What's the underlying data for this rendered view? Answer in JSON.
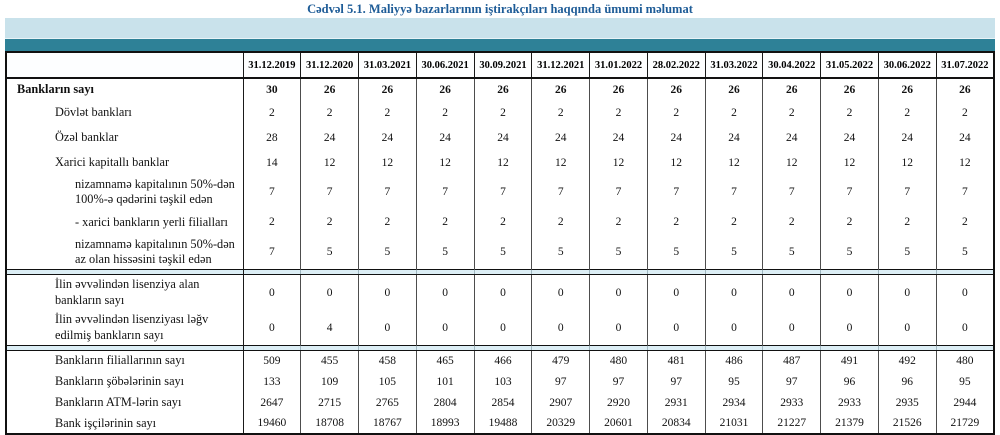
{
  "title": "Cədvəl 5.1. Maliyyə bazarlarının iştirakçıları haqqında ümumi məlumat",
  "colors": {
    "title_text": "#1e5c97",
    "band_light": "#c9e2eb",
    "band_teal": "#2e8197",
    "separator": "#dceef5",
    "border": "#111111"
  },
  "table": {
    "columns": [
      "31.12.2019",
      "31.12.2020",
      "31.03.2021",
      "30.06.2021",
      "30.09.2021",
      "31.12.2021",
      "31.01.2022",
      "28.02.2022",
      "31.03.2022",
      "30.04.2022",
      "31.05.2022",
      "30.06.2022",
      "31.07.2022"
    ],
    "sections": [
      {
        "rows": [
          {
            "label": "Bankların sayı",
            "indent": 0,
            "bold": true,
            "values": [
              "30",
              "26",
              "26",
              "26",
              "26",
              "26",
              "26",
              "26",
              "26",
              "26",
              "26",
              "26",
              "26"
            ]
          },
          {
            "label": "Dövlət bankları",
            "indent": 1,
            "bold": false,
            "values": [
              "2",
              "2",
              "2",
              "2",
              "2",
              "2",
              "2",
              "2",
              "2",
              "2",
              "2",
              "2",
              "2"
            ]
          },
          {
            "label": "Özəl banklar",
            "indent": 1,
            "bold": false,
            "values": [
              "28",
              "24",
              "24",
              "24",
              "24",
              "24",
              "24",
              "24",
              "24",
              "24",
              "24",
              "24",
              "24"
            ]
          },
          {
            "label": "Xarici kapitallı banklar",
            "indent": 1,
            "bold": false,
            "values": [
              "14",
              "12",
              "12",
              "12",
              "12",
              "12",
              "12",
              "12",
              "12",
              "12",
              "12",
              "12",
              "12"
            ]
          },
          {
            "label": "nizamnamə kapitalının 50%-dən 100%-ə qədərini təşkil edən",
            "indent": 2,
            "bold": false,
            "values": [
              "7",
              "7",
              "7",
              "7",
              "7",
              "7",
              "7",
              "7",
              "7",
              "7",
              "7",
              "7",
              "7"
            ]
          },
          {
            "label": "-  xarici bankların yerli filialları",
            "indent": 2,
            "bold": false,
            "values": [
              "2",
              "2",
              "2",
              "2",
              "2",
              "2",
              "2",
              "2",
              "2",
              "2",
              "2",
              "2",
              "2"
            ]
          },
          {
            "label": "nizamnamə kapitalının 50%-dən az olan hissəsini  təşkil edən",
            "indent": 2,
            "bold": false,
            "values": [
              "7",
              "5",
              "5",
              "5",
              "5",
              "5",
              "5",
              "5",
              "5",
              "5",
              "5",
              "5",
              "5"
            ]
          }
        ]
      },
      {
        "rows": [
          {
            "label": "İlin əvvəlindən lisenziya alan bankların sayı",
            "indent": 1,
            "bold": false,
            "values": [
              "0",
              "0",
              "0",
              "0",
              "0",
              "0",
              "0",
              "0",
              "0",
              "0",
              "0",
              "0",
              "0"
            ]
          },
          {
            "label": "İlin əvvəlindən lisenziyası ləğv edilmiş bankların sayı",
            "indent": 1,
            "bold": false,
            "values": [
              "0",
              "4",
              "0",
              "0",
              "0",
              "0",
              "0",
              "0",
              "0",
              "0",
              "0",
              "0",
              "0"
            ]
          }
        ]
      },
      {
        "rows": [
          {
            "label": "Bankların filiallarının sayı",
            "indent": 1,
            "bold": false,
            "values": [
              "509",
              "455",
              "458",
              "465",
              "466",
              "479",
              "480",
              "481",
              "486",
              "487",
              "491",
              "492",
              "480"
            ]
          },
          {
            "label": "Bankların şöbələrinin sayı",
            "indent": 1,
            "bold": false,
            "values": [
              "133",
              "109",
              "105",
              "101",
              "103",
              "97",
              "97",
              "97",
              "95",
              "97",
              "96",
              "96",
              "95"
            ]
          },
          {
            "label": "Bankların ATM-lərin sayı",
            "indent": 1,
            "bold": false,
            "values": [
              "2647",
              "2715",
              "2765",
              "2804",
              "2854",
              "2907",
              "2920",
              "2931",
              "2934",
              "2933",
              "2933",
              "2935",
              "2944"
            ]
          },
          {
            "label": "Bank işçilərinin sayı",
            "indent": 1,
            "bold": false,
            "values": [
              "19460",
              "18708",
              "18767",
              "18993",
              "19488",
              "20329",
              "20601",
              "20834",
              "21031",
              "21227",
              "21379",
              "21526",
              "21729"
            ]
          }
        ]
      }
    ]
  }
}
